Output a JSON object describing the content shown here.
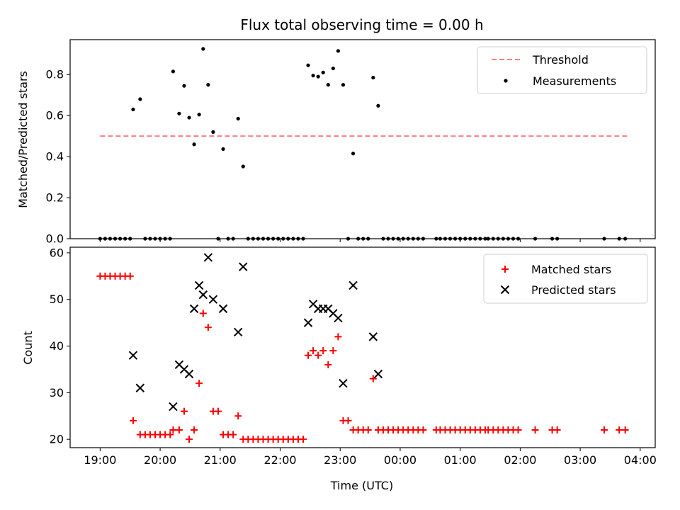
{
  "chart_data": [
    {
      "type": "scatter",
      "title": "Flux total observing time = 0.00 h",
      "xlabel": "",
      "ylabel": "Matched/Predicted stars",
      "xlim": [
        "18:30",
        "04:15"
      ],
      "ylim": [
        0.0,
        0.97
      ],
      "yticks": [
        0.0,
        0.2,
        0.4,
        0.6,
        0.8
      ],
      "ytick_labels": [
        "0.0",
        "0.2",
        "0.4",
        "0.6",
        "0.8"
      ],
      "grid": false,
      "legend_position": "top-right",
      "threshold": {
        "name": "Threshold",
        "color": "#ff7f7f",
        "value": 0.5,
        "x_start": "19:00",
        "x_end": "03:50"
      },
      "series": [
        {
          "name": "Measurements",
          "color": "#000000",
          "marker": "dot",
          "points": [
            [
              "19:00",
              0.0
            ],
            [
              "19:05",
              0.0
            ],
            [
              "19:10",
              0.0
            ],
            [
              "19:15",
              0.0
            ],
            [
              "19:20",
              0.0
            ],
            [
              "19:25",
              0.0
            ],
            [
              "19:30",
              0.0
            ],
            [
              "19:33",
              0.63
            ],
            [
              "19:40",
              0.68
            ],
            [
              "19:45",
              0.0
            ],
            [
              "19:50",
              0.0
            ],
            [
              "19:55",
              0.0
            ],
            [
              "20:00",
              0.0
            ],
            [
              "20:05",
              0.0
            ],
            [
              "20:10",
              0.0
            ],
            [
              "20:13",
              0.815
            ],
            [
              "20:19",
              0.61
            ],
            [
              "20:24",
              0.745
            ],
            [
              "20:29",
              0.59
            ],
            [
              "20:34",
              0.46
            ],
            [
              "20:39",
              0.605
            ],
            [
              "20:43",
              0.925
            ],
            [
              "20:48",
              0.75
            ],
            [
              "20:53",
              0.52
            ],
            [
              "20:58",
              0.0
            ],
            [
              "21:03",
              0.437
            ],
            [
              "21:08",
              0.0
            ],
            [
              "21:13",
              0.0
            ],
            [
              "21:18",
              0.585
            ],
            [
              "21:23",
              0.352
            ],
            [
              "21:28",
              0.0
            ],
            [
              "21:33",
              0.0
            ],
            [
              "21:38",
              0.0
            ],
            [
              "21:43",
              0.0
            ],
            [
              "21:48",
              0.0
            ],
            [
              "21:53",
              0.0
            ],
            [
              "21:58",
              0.0
            ],
            [
              "22:03",
              0.0
            ],
            [
              "22:08",
              0.0
            ],
            [
              "22:13",
              0.0
            ],
            [
              "22:18",
              0.0
            ],
            [
              "22:23",
              0.0
            ],
            [
              "22:28",
              0.845
            ],
            [
              "22:33",
              0.795
            ],
            [
              "22:38",
              0.79
            ],
            [
              "22:43",
              0.81
            ],
            [
              "22:48",
              0.75
            ],
            [
              "22:53",
              0.83
            ],
            [
              "22:58",
              0.915
            ],
            [
              "23:03",
              0.75
            ],
            [
              "23:08",
              0.0
            ],
            [
              "23:13",
              0.415
            ],
            [
              "23:18",
              0.0
            ],
            [
              "23:23",
              0.0
            ],
            [
              "23:28",
              0.0
            ],
            [
              "23:33",
              0.785
            ],
            [
              "23:38",
              0.648
            ],
            [
              "23:43",
              0.0
            ],
            [
              "23:48",
              0.0
            ],
            [
              "23:53",
              0.0
            ],
            [
              "23:58",
              0.0
            ],
            [
              "00:03",
              0.0
            ],
            [
              "00:08",
              0.0
            ],
            [
              "00:13",
              0.0
            ],
            [
              "00:18",
              0.0
            ],
            [
              "00:23",
              0.0
            ],
            [
              "00:36",
              0.0
            ],
            [
              "00:40",
              0.0
            ],
            [
              "00:45",
              0.0
            ],
            [
              "00:50",
              0.0
            ],
            [
              "00:55",
              0.0
            ],
            [
              "01:00",
              0.0
            ],
            [
              "01:05",
              0.0
            ],
            [
              "01:10",
              0.0
            ],
            [
              "01:15",
              0.0
            ],
            [
              "01:20",
              0.0
            ],
            [
              "01:25",
              0.0
            ],
            [
              "01:28",
              0.0
            ],
            [
              "01:33",
              0.0
            ],
            [
              "01:38",
              0.0
            ],
            [
              "01:43",
              0.0
            ],
            [
              "01:48",
              0.0
            ],
            [
              "01:53",
              0.0
            ],
            [
              "01:58",
              0.0
            ],
            [
              "02:15",
              0.0
            ],
            [
              "02:32",
              0.0
            ],
            [
              "02:37",
              0.0
            ],
            [
              "03:24",
              0.0
            ],
            [
              "03:39",
              0.0
            ],
            [
              "03:45",
              0.0
            ]
          ]
        }
      ]
    },
    {
      "type": "scatter",
      "title": "",
      "xlabel": "Time (UTC)",
      "ylabel": "Count",
      "xlim": [
        "18:30",
        "04:15"
      ],
      "ylim": [
        18.2,
        61.2
      ],
      "yticks": [
        20,
        30,
        40,
        50,
        60
      ],
      "ytick_labels": [
        "20",
        "30",
        "40",
        "50",
        "60"
      ],
      "xticks": [
        "19:00",
        "20:00",
        "21:00",
        "22:00",
        "23:00",
        "00:00",
        "01:00",
        "02:00",
        "03:00",
        "04:00"
      ],
      "xtick_labels": [
        "19:00",
        "20:00",
        "21:00",
        "22:00",
        "23:00",
        "00:00",
        "01:00",
        "02:00",
        "03:00",
        "04:00"
      ],
      "grid": false,
      "legend_position": "top-right",
      "series": [
        {
          "name": "Matched stars",
          "color": "#ff0000",
          "marker": "plus",
          "points": [
            [
              "19:00",
              55
            ],
            [
              "19:05",
              55
            ],
            [
              "19:10",
              55
            ],
            [
              "19:15",
              55
            ],
            [
              "19:20",
              55
            ],
            [
              "19:25",
              55
            ],
            [
              "19:30",
              55
            ],
            [
              "19:33",
              24
            ],
            [
              "19:40",
              21
            ],
            [
              "19:45",
              21
            ],
            [
              "19:50",
              21
            ],
            [
              "19:55",
              21
            ],
            [
              "20:00",
              21
            ],
            [
              "20:05",
              21
            ],
            [
              "20:10",
              21
            ],
            [
              "20:13",
              22
            ],
            [
              "20:19",
              22
            ],
            [
              "20:24",
              26
            ],
            [
              "20:29",
              20
            ],
            [
              "20:34",
              22
            ],
            [
              "20:39",
              32
            ],
            [
              "20:43",
              47
            ],
            [
              "20:48",
              44
            ],
            [
              "20:53",
              26
            ],
            [
              "20:58",
              26
            ],
            [
              "21:03",
              21
            ],
            [
              "21:08",
              21
            ],
            [
              "21:13",
              21
            ],
            [
              "21:18",
              25
            ],
            [
              "21:23",
              20
            ],
            [
              "21:28",
              20
            ],
            [
              "21:33",
              20
            ],
            [
              "21:38",
              20
            ],
            [
              "21:43",
              20
            ],
            [
              "21:48",
              20
            ],
            [
              "21:53",
              20
            ],
            [
              "21:58",
              20
            ],
            [
              "22:03",
              20
            ],
            [
              "22:08",
              20
            ],
            [
              "22:13",
              20
            ],
            [
              "22:18",
              20
            ],
            [
              "22:23",
              20
            ],
            [
              "22:28",
              38
            ],
            [
              "22:33",
              39
            ],
            [
              "22:38",
              38
            ],
            [
              "22:43",
              39
            ],
            [
              "22:48",
              36
            ],
            [
              "22:53",
              39
            ],
            [
              "22:58",
              42
            ],
            [
              "23:03",
              24
            ],
            [
              "23:08",
              24
            ],
            [
              "23:13",
              22
            ],
            [
              "23:18",
              22
            ],
            [
              "23:23",
              22
            ],
            [
              "23:28",
              22
            ],
            [
              "23:33",
              33
            ],
            [
              "23:38",
              22
            ],
            [
              "23:43",
              22
            ],
            [
              "23:48",
              22
            ],
            [
              "23:53",
              22
            ],
            [
              "23:58",
              22
            ],
            [
              "00:03",
              22
            ],
            [
              "00:08",
              22
            ],
            [
              "00:13",
              22
            ],
            [
              "00:18",
              22
            ],
            [
              "00:23",
              22
            ],
            [
              "00:36",
              22
            ],
            [
              "00:40",
              22
            ],
            [
              "00:45",
              22
            ],
            [
              "00:50",
              22
            ],
            [
              "00:55",
              22
            ],
            [
              "01:00",
              22
            ],
            [
              "01:05",
              22
            ],
            [
              "01:10",
              22
            ],
            [
              "01:15",
              22
            ],
            [
              "01:20",
              22
            ],
            [
              "01:25",
              22
            ],
            [
              "01:28",
              22
            ],
            [
              "01:33",
              22
            ],
            [
              "01:38",
              22
            ],
            [
              "01:43",
              22
            ],
            [
              "01:48",
              22
            ],
            [
              "01:53",
              22
            ],
            [
              "01:58",
              22
            ],
            [
              "02:15",
              22
            ],
            [
              "02:32",
              22
            ],
            [
              "02:37",
              22
            ],
            [
              "03:24",
              22
            ],
            [
              "03:39",
              22
            ],
            [
              "03:45",
              22
            ]
          ]
        },
        {
          "name": "Predicted stars",
          "color": "#000000",
          "marker": "x",
          "points": [
            [
              "19:33",
              38
            ],
            [
              "19:40",
              31
            ],
            [
              "20:13",
              27
            ],
            [
              "20:19",
              36
            ],
            [
              "20:24",
              35
            ],
            [
              "20:29",
              34
            ],
            [
              "20:34",
              48
            ],
            [
              "20:39",
              53
            ],
            [
              "20:43",
              51
            ],
            [
              "20:48",
              59
            ],
            [
              "20:53",
              50
            ],
            [
              "21:03",
              48
            ],
            [
              "21:18",
              43
            ],
            [
              "21:23",
              57
            ],
            [
              "22:28",
              45
            ],
            [
              "22:33",
              49
            ],
            [
              "22:38",
              48
            ],
            [
              "22:43",
              48
            ],
            [
              "22:48",
              48
            ],
            [
              "22:53",
              47
            ],
            [
              "22:58",
              46
            ],
            [
              "23:03",
              32
            ],
            [
              "23:13",
              53
            ],
            [
              "23:33",
              42
            ],
            [
              "23:38",
              34
            ]
          ]
        }
      ]
    }
  ]
}
